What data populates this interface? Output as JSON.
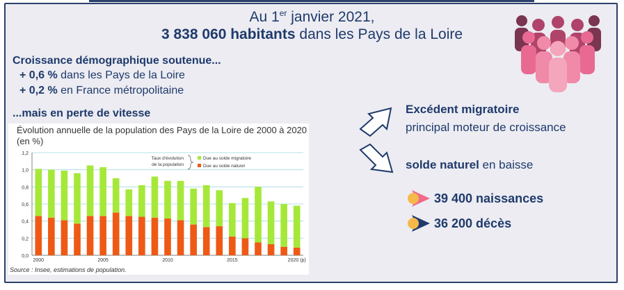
{
  "header": {
    "line1_prefix": "Au 1",
    "line1_sup": "er",
    "line1_suffix": " janvier 2021,",
    "line2_bold": "3 838 060 habitants",
    "line2_rest": " dans les Pays de la Loire"
  },
  "growth": {
    "heading": "Croissance démographique soutenue...",
    "items": [
      {
        "value": "+ 0,6 %",
        "text": " dans les Pays de la Loire"
      },
      {
        "value": "+ 0,2 %",
        "text": " en France métropolitaine"
      }
    ]
  },
  "slowdown_heading": "...mais en perte de vitesse",
  "chart_source": "Source : Insee, estimations de population.",
  "right": {
    "migration_bold": "Excédent migratoire",
    "migration_text": "principal moteur de croissance",
    "natural_bold": "solde naturel",
    "natural_text": " en baisse",
    "births": "39 400 naissances",
    "deaths": "36 200 décès"
  },
  "colors": {
    "navy": "#1f3a6b",
    "migratory": "#a6e83a",
    "natural": "#ee5a16",
    "pink": "#f06a8a",
    "orange_dot": "#f5b94a"
  },
  "icons": [
    "people-group-icon",
    "arrow-up-right-icon",
    "arrow-down-right-icon",
    "bullet-arrow-icon"
  ],
  "chart_data": {
    "type": "bar",
    "stacked": true,
    "title": "Évolution annuelle de la population des Pays de la Loire de 2000 à 2020 (en %)",
    "legend_heading": "Taux d'évolution de la population",
    "legend_placement": "top-right",
    "x": [
      2000,
      2001,
      2002,
      2003,
      2004,
      2005,
      2006,
      2007,
      2008,
      2009,
      2010,
      2011,
      2012,
      2013,
      2014,
      2015,
      2016,
      2017,
      2018,
      2019,
      2020
    ],
    "x_tick_labels": [
      "2000",
      "2005",
      "2010",
      "2015",
      "2020 (p)"
    ],
    "x_tick_positions": [
      2000,
      2005,
      2010,
      2015,
      2020
    ],
    "ylim": [
      0,
      1.2
    ],
    "y_ticks": [
      "0,0",
      "0,2",
      "0,4",
      "0,6",
      "0,8",
      "1,0",
      "1,2"
    ],
    "grid": true,
    "series": [
      {
        "name": "Due au solde naturel",
        "color": "#ee5a16",
        "values": [
          0.46,
          0.44,
          0.41,
          0.37,
          0.46,
          0.46,
          0.5,
          0.46,
          0.45,
          0.44,
          0.43,
          0.41,
          0.36,
          0.33,
          0.34,
          0.22,
          0.2,
          0.15,
          0.13,
          0.1,
          0.09
        ]
      },
      {
        "name": "Due au solde migratoire",
        "color": "#a6e83a",
        "values": [
          0.55,
          0.56,
          0.58,
          0.59,
          0.59,
          0.57,
          0.4,
          0.31,
          0.37,
          0.48,
          0.44,
          0.46,
          0.42,
          0.49,
          0.42,
          0.39,
          0.47,
          0.65,
          0.5,
          0.5,
          0.49
        ]
      }
    ]
  }
}
